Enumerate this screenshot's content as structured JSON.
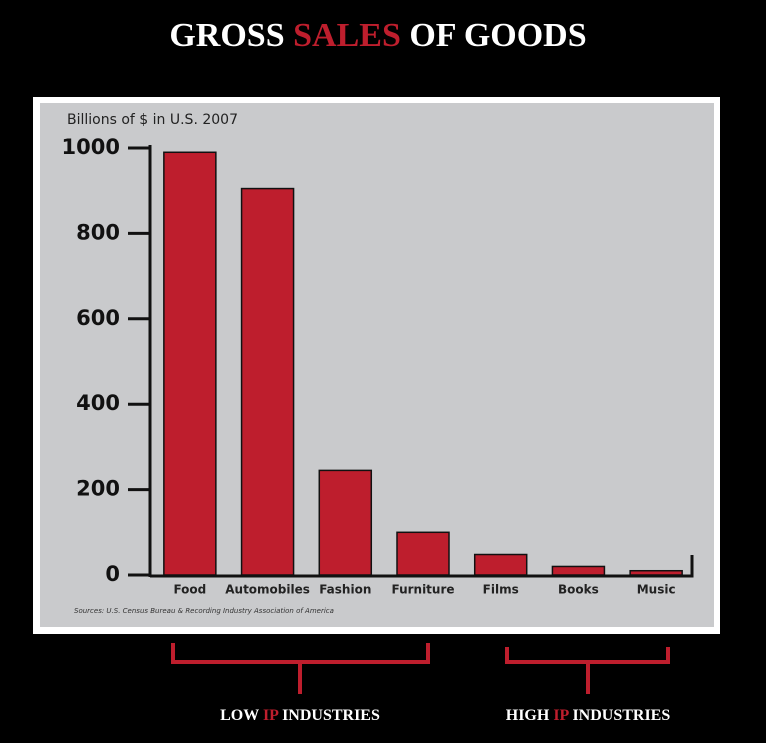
{
  "chart_data": {
    "type": "bar",
    "title_parts": [
      "GROSS",
      "SALES",
      "OF GOODS"
    ],
    "y_axis_label": "Billions of $ in U.S. 2007",
    "categories": [
      "Food",
      "Automobiles",
      "Fashion",
      "Furniture",
      "Films",
      "Books",
      "Music"
    ],
    "values": [
      990,
      905,
      245,
      100,
      48,
      20,
      10
    ],
    "color": "#be1e2d",
    "ylim": [
      0,
      1000
    ],
    "yticks": [
      0,
      200,
      400,
      600,
      800,
      1000
    ],
    "source": "Sources: U.S. Census Bureau & Recording Industry Association of America",
    "groups": [
      {
        "label_parts": [
          "LOW",
          "IP",
          "INDUSTRIES"
        ]
      },
      {
        "label_parts": [
          "HIGH",
          "IP",
          "INDUSTRIES"
        ]
      }
    ]
  }
}
